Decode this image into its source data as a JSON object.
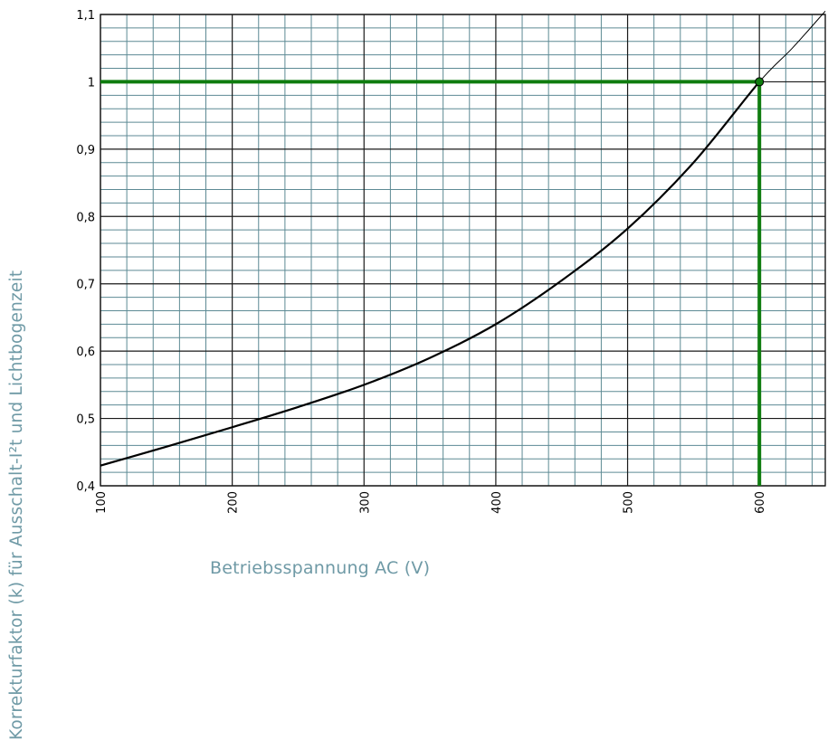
{
  "chart_data": {
    "type": "line",
    "xlabel": "Betriebsspannung AC (V)",
    "ylabel": "Korrekturfaktor (k) für Ausschalt-I²t und Lichtbogenzeit",
    "xlim": [
      100,
      650
    ],
    "ylim": [
      0.4,
      1.1
    ],
    "x_ticks": [
      "100",
      "200",
      "300",
      "400",
      "500",
      "600"
    ],
    "y_ticks": [
      "0,4",
      "0,5",
      "0,6",
      "0,7",
      "0,8",
      "0,9",
      "1",
      "1,1"
    ],
    "grid": true,
    "series": [
      {
        "x": [
          100,
          150,
          200,
          250,
          300,
          350,
          400,
          450,
          500,
          550,
          600,
          625,
          650
        ],
        "y": [
          0.43,
          0.458,
          0.487,
          0.517,
          0.55,
          0.59,
          0.64,
          0.705,
          0.782,
          0.88,
          1.0,
          1.05,
          1.105
        ]
      }
    ],
    "highlight": {
      "x": 600,
      "y": 1.0,
      "color": "#0f7c0f"
    },
    "colors": {
      "major_grid": "#1a1a1a",
      "minor_grid": "#5d8a94",
      "curve": "#000000",
      "axis_label": "#6f9aa6"
    }
  }
}
